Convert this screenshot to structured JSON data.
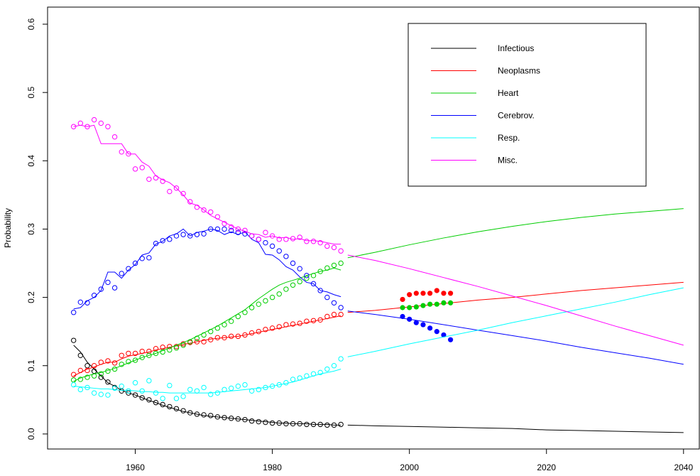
{
  "chart_data": {
    "type": "line",
    "y_label": "Probability",
    "xlim": [
      1947.2,
      2042.3
    ],
    "ylim": [
      -0.022,
      0.625
    ],
    "xticks": [
      1960,
      1980,
      2000,
      2020,
      2040
    ],
    "yticks": [
      {
        "value": 0,
        "label": "0.0"
      },
      {
        "value": 0.1,
        "label": "0.1"
      },
      {
        "value": 0.2,
        "label": "0.2"
      },
      {
        "value": 0.3,
        "label": "0.3"
      },
      {
        "value": 0.4,
        "label": "0.4"
      },
      {
        "value": 0.5,
        "label": "0.5"
      },
      {
        "value": 0.6,
        "label": "0.6"
      }
    ],
    "x": [
      1951,
      1952,
      1953,
      1954,
      1955,
      1956,
      1957,
      1958,
      1959,
      1960,
      1961,
      1962,
      1963,
      1964,
      1965,
      1966,
      1967,
      1968,
      1969,
      1970,
      1971,
      1972,
      1973,
      1974,
      1975,
      1976,
      1977,
      1978,
      1979,
      1980,
      1981,
      1982,
      1983,
      1984,
      1985,
      1986,
      1987,
      1988,
      1989,
      1990
    ],
    "forecast_x": [
      1991,
      1995,
      2000,
      2005,
      2010,
      2015,
      2020,
      2025,
      2030,
      2035,
      2040
    ],
    "recent_x": [
      1999,
      2000,
      2001,
      2002,
      2003,
      2004,
      2005,
      2006
    ],
    "series": [
      {
        "name": "Infectious",
        "color": "#000000",
        "observed": [
          0.137,
          0.115,
          0.1,
          0.092,
          0.083,
          0.076,
          0.068,
          0.063,
          0.06,
          0.057,
          0.053,
          0.05,
          0.046,
          0.043,
          0.04,
          0.037,
          0.034,
          0.031,
          0.029,
          0.028,
          0.027,
          0.025,
          0.024,
          0.023,
          0.022,
          0.021,
          0.019,
          0.018,
          0.017,
          0.016,
          0.016,
          0.015,
          0.015,
          0.015,
          0.014,
          0.014,
          0.014,
          0.013,
          0.013,
          0.014
        ],
        "fitted": [
          0.13,
          0.12,
          0.105,
          0.095,
          0.085,
          0.075,
          0.07,
          0.064,
          0.06,
          0.057,
          0.053,
          0.049,
          0.046,
          0.042,
          0.039,
          0.036,
          0.033,
          0.031,
          0.029,
          0.027,
          0.026,
          0.025,
          0.024,
          0.023,
          0.022,
          0.021,
          0.02,
          0.019,
          0.018,
          0.017,
          0.016,
          0.016,
          0.015,
          0.015,
          0.015,
          0.014,
          0.014,
          0.014,
          0.013,
          0.013
        ],
        "forecast": [
          0.013,
          0.012,
          0.011,
          0.01,
          0.009,
          0.008,
          0.006,
          0.005,
          0.004,
          0.003,
          0.002
        ]
      },
      {
        "name": "Neoplasms",
        "color": "#ff0000",
        "observed": [
          0.087,
          0.093,
          0.093,
          0.1,
          0.105,
          0.107,
          0.104,
          0.115,
          0.118,
          0.118,
          0.121,
          0.121,
          0.125,
          0.127,
          0.128,
          0.128,
          0.132,
          0.134,
          0.135,
          0.135,
          0.138,
          0.141,
          0.141,
          0.143,
          0.143,
          0.145,
          0.148,
          0.15,
          0.153,
          0.155,
          0.157,
          0.16,
          0.161,
          0.162,
          0.165,
          0.166,
          0.167,
          0.172,
          0.175,
          0.175
        ],
        "fitted": [
          0.085,
          0.09,
          0.095,
          0.098,
          0.102,
          0.105,
          0.105,
          0.11,
          0.114,
          0.116,
          0.118,
          0.12,
          0.123,
          0.125,
          0.127,
          0.129,
          0.131,
          0.133,
          0.135,
          0.137,
          0.139,
          0.14,
          0.141,
          0.142,
          0.143,
          0.145,
          0.147,
          0.149,
          0.151,
          0.153,
          0.155,
          0.157,
          0.159,
          0.161,
          0.163,
          0.165,
          0.167,
          0.169,
          0.171,
          0.173
        ],
        "forecast": [
          0.178,
          0.181,
          0.186,
          0.191,
          0.196,
          0.2,
          0.205,
          0.21,
          0.214,
          0.218,
          0.222
        ],
        "recent": [
          0.197,
          0.204,
          0.206,
          0.206,
          0.206,
          0.21,
          0.206,
          0.206
        ]
      },
      {
        "name": "Heart",
        "color": "#00cd00",
        "observed": [
          0.079,
          0.08,
          0.083,
          0.085,
          0.088,
          0.092,
          0.095,
          0.102,
          0.106,
          0.108,
          0.112,
          0.115,
          0.118,
          0.12,
          0.123,
          0.126,
          0.13,
          0.135,
          0.14,
          0.145,
          0.15,
          0.155,
          0.16,
          0.165,
          0.172,
          0.178,
          0.185,
          0.19,
          0.195,
          0.2,
          0.205,
          0.212,
          0.218,
          0.223,
          0.228,
          0.232,
          0.238,
          0.243,
          0.247,
          0.25
        ],
        "fitted": [
          0.077,
          0.082,
          0.085,
          0.088,
          0.09,
          0.093,
          0.096,
          0.1,
          0.104,
          0.108,
          0.112,
          0.115,
          0.118,
          0.122,
          0.126,
          0.13,
          0.134,
          0.138,
          0.143,
          0.148,
          0.153,
          0.158,
          0.164,
          0.17,
          0.176,
          0.182,
          0.19,
          0.198,
          0.205,
          0.212,
          0.218,
          0.222,
          0.225,
          0.228,
          0.232,
          0.235,
          0.238,
          0.24,
          0.243,
          0.24
        ],
        "forecast": [
          0.258,
          0.266,
          0.277,
          0.287,
          0.296,
          0.304,
          0.311,
          0.317,
          0.322,
          0.326,
          0.33
        ],
        "recent": [
          0.185,
          0.185,
          0.186,
          0.188,
          0.19,
          0.19,
          0.192,
          0.192
        ]
      },
      {
        "name": "Cerebrov.",
        "color": "#0000ff",
        "observed": [
          0.178,
          0.193,
          0.192,
          0.203,
          0.212,
          0.222,
          0.214,
          0.235,
          0.242,
          0.25,
          0.257,
          0.258,
          0.279,
          0.283,
          0.285,
          0.29,
          0.292,
          0.29,
          0.292,
          0.293,
          0.3,
          0.3,
          0.3,
          0.298,
          0.295,
          0.293,
          0.29,
          0.285,
          0.28,
          0.275,
          0.268,
          0.26,
          0.25,
          0.242,
          0.232,
          0.22,
          0.21,
          0.2,
          0.192,
          0.185
        ],
        "fitted": [
          0.183,
          0.185,
          0.195,
          0.2,
          0.21,
          0.237,
          0.237,
          0.228,
          0.24,
          0.248,
          0.262,
          0.265,
          0.278,
          0.282,
          0.29,
          0.293,
          0.3,
          0.29,
          0.295,
          0.297,
          0.3,
          0.298,
          0.292,
          0.296,
          0.292,
          0.296,
          0.285,
          0.28,
          0.263,
          0.262,
          0.255,
          0.245,
          0.24,
          0.23,
          0.222,
          0.22,
          0.21,
          0.208,
          0.204,
          0.201
        ],
        "forecast": [
          0.18,
          0.175,
          0.168,
          0.16,
          0.152,
          0.144,
          0.136,
          0.127,
          0.119,
          0.111,
          0.102
        ],
        "recent": [
          0.172,
          0.168,
          0.163,
          0.16,
          0.155,
          0.15,
          0.145,
          0.138
        ]
      },
      {
        "name": "Resp.",
        "color": "#00ffff",
        "observed": [
          0.072,
          0.065,
          0.068,
          0.06,
          0.058,
          0.057,
          0.067,
          0.07,
          0.063,
          0.075,
          0.063,
          0.078,
          0.06,
          0.052,
          0.071,
          0.052,
          0.055,
          0.065,
          0.063,
          0.068,
          0.058,
          0.06,
          0.065,
          0.067,
          0.07,
          0.072,
          0.063,
          0.065,
          0.068,
          0.07,
          0.072,
          0.075,
          0.08,
          0.082,
          0.085,
          0.088,
          0.09,
          0.095,
          0.1,
          0.11
        ],
        "fitted": [
          0.07,
          0.069,
          0.068,
          0.067,
          0.066,
          0.066,
          0.065,
          0.064,
          0.064,
          0.063,
          0.062,
          0.062,
          0.061,
          0.061,
          0.06,
          0.06,
          0.06,
          0.06,
          0.06,
          0.06,
          0.06,
          0.061,
          0.062,
          0.063,
          0.064,
          0.065,
          0.066,
          0.067,
          0.068,
          0.07,
          0.072,
          0.074,
          0.076,
          0.079,
          0.082,
          0.085,
          0.088,
          0.09,
          0.092,
          0.095
        ],
        "forecast": [
          0.113,
          0.121,
          0.132,
          0.142,
          0.152,
          0.163,
          0.173,
          0.183,
          0.193,
          0.204,
          0.214
        ]
      },
      {
        "name": "Misc.",
        "color": "#ff00ff",
        "observed": [
          0.45,
          0.455,
          0.45,
          0.46,
          0.455,
          0.45,
          0.435,
          0.413,
          0.41,
          0.388,
          0.39,
          0.373,
          0.375,
          0.37,
          0.355,
          0.36,
          0.352,
          0.34,
          0.332,
          0.328,
          0.325,
          0.318,
          0.308,
          0.303,
          0.3,
          0.298,
          0.29,
          0.285,
          0.295,
          0.29,
          0.285,
          0.285,
          0.286,
          0.288,
          0.282,
          0.282,
          0.28,
          0.275,
          0.273,
          0.268
        ],
        "fitted": [
          0.45,
          0.452,
          0.45,
          0.452,
          0.425,
          0.425,
          0.425,
          0.425,
          0.41,
          0.41,
          0.398,
          0.392,
          0.378,
          0.372,
          0.368,
          0.36,
          0.35,
          0.338,
          0.335,
          0.328,
          0.32,
          0.315,
          0.31,
          0.305,
          0.3,
          0.297,
          0.293,
          0.292,
          0.288,
          0.29,
          0.287,
          0.288,
          0.285,
          0.286,
          0.283,
          0.283,
          0.282,
          0.28,
          0.278,
          0.278
        ],
        "forecast": [
          0.262,
          0.254,
          0.242,
          0.229,
          0.216,
          0.202,
          0.188,
          0.173,
          0.158,
          0.144,
          0.13
        ]
      }
    ]
  }
}
